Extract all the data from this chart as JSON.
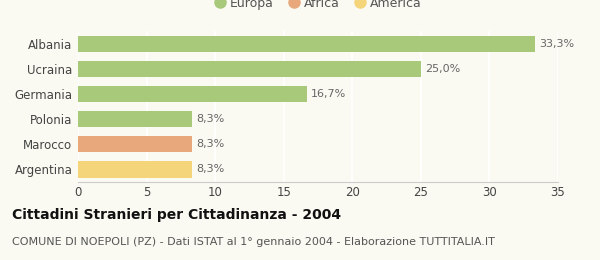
{
  "categories": [
    "Albania",
    "Ucraina",
    "Germania",
    "Polonia",
    "Marocco",
    "Argentina"
  ],
  "values": [
    33.3,
    25.0,
    16.7,
    8.3,
    8.3,
    8.3
  ],
  "labels": [
    "33,3%",
    "25,0%",
    "16,7%",
    "8,3%",
    "8,3%",
    "8,3%"
  ],
  "colors": [
    "#a8c87a",
    "#a8c87a",
    "#a8c87a",
    "#a8c87a",
    "#e8a87c",
    "#f5d57a"
  ],
  "legend_items": [
    {
      "label": "Europa",
      "color": "#a8c87a"
    },
    {
      "label": "Africa",
      "color": "#e8a87c"
    },
    {
      "label": "America",
      "color": "#f5d57a"
    }
  ],
  "xlim": [
    0,
    35
  ],
  "xticks": [
    0,
    5,
    10,
    15,
    20,
    25,
    30,
    35
  ],
  "title": "Cittadini Stranieri per Cittadinanza - 2004",
  "subtitle": "COMUNE DI NOEPOLI (PZ) - Dati ISTAT al 1° gennaio 2004 - Elaborazione TUTTITALIA.IT",
  "bg_color": "#fafaf2",
  "grid_color": "#ffffff",
  "bar_height": 0.65,
  "title_fontsize": 10,
  "subtitle_fontsize": 8,
  "label_fontsize": 8,
  "ytick_fontsize": 8.5,
  "xtick_fontsize": 8.5,
  "legend_fontsize": 9
}
